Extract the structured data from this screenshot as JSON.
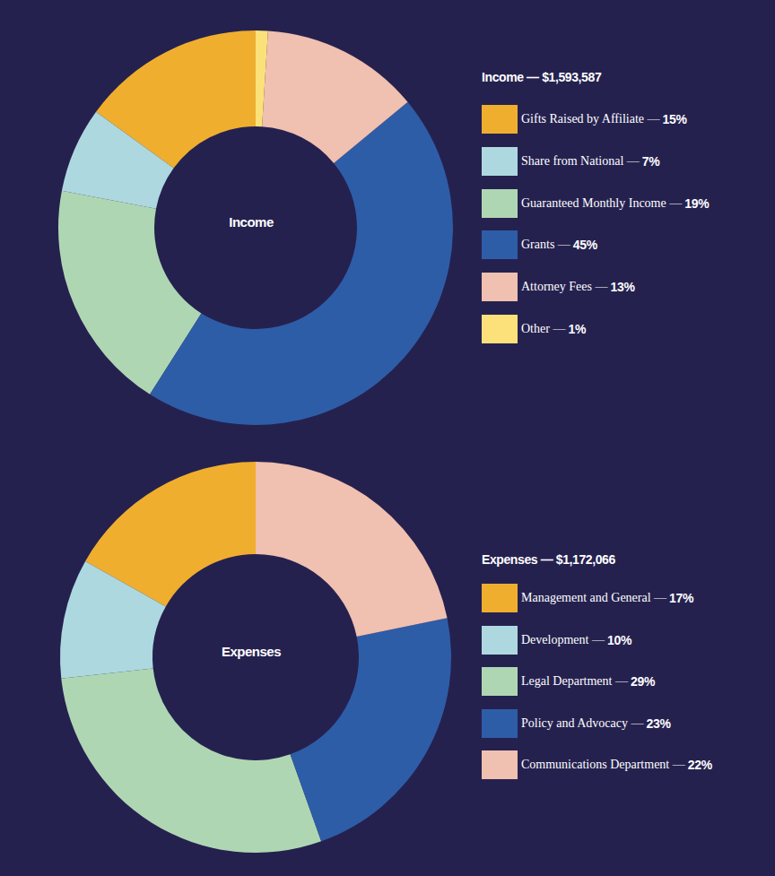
{
  "chart_data": [
    {
      "type": "pie",
      "title": "Income — $1,593,587",
      "annotations": [
        "Income"
      ],
      "categories": [
        "Gifts Raised by Affiliate",
        "Share from National",
        "Guaranteed Monthly Income",
        "Grants",
        "Attorney Fees",
        "Other"
      ],
      "values": [
        15,
        7,
        19,
        45,
        13,
        1
      ],
      "value_labels": [
        "15%",
        "7%",
        "19%",
        "45%",
        "13%",
        "1%"
      ],
      "colors": [
        "#EFAE2E",
        "#ADD8E0",
        "#AFD6B2",
        "#2E5DA8",
        "#F0C0B0",
        "#FCE17A"
      ],
      "legend": "right"
    },
    {
      "type": "pie",
      "title": "Expenses — $1,172,066",
      "annotations": [
        "Expenses"
      ],
      "categories": [
        "Management and General",
        "Development",
        "Legal Department",
        "Policy and Advocacy",
        "Communications Department"
      ],
      "values": [
        17,
        10,
        29,
        23,
        22
      ],
      "value_labels": [
        "17%",
        "10%",
        "29%",
        "23%",
        "22%"
      ],
      "colors": [
        "#EFAE2E",
        "#ADD8E0",
        "#AFD6B2",
        "#2E5DA8",
        "#F0C0B0"
      ],
      "legend": "right"
    }
  ]
}
